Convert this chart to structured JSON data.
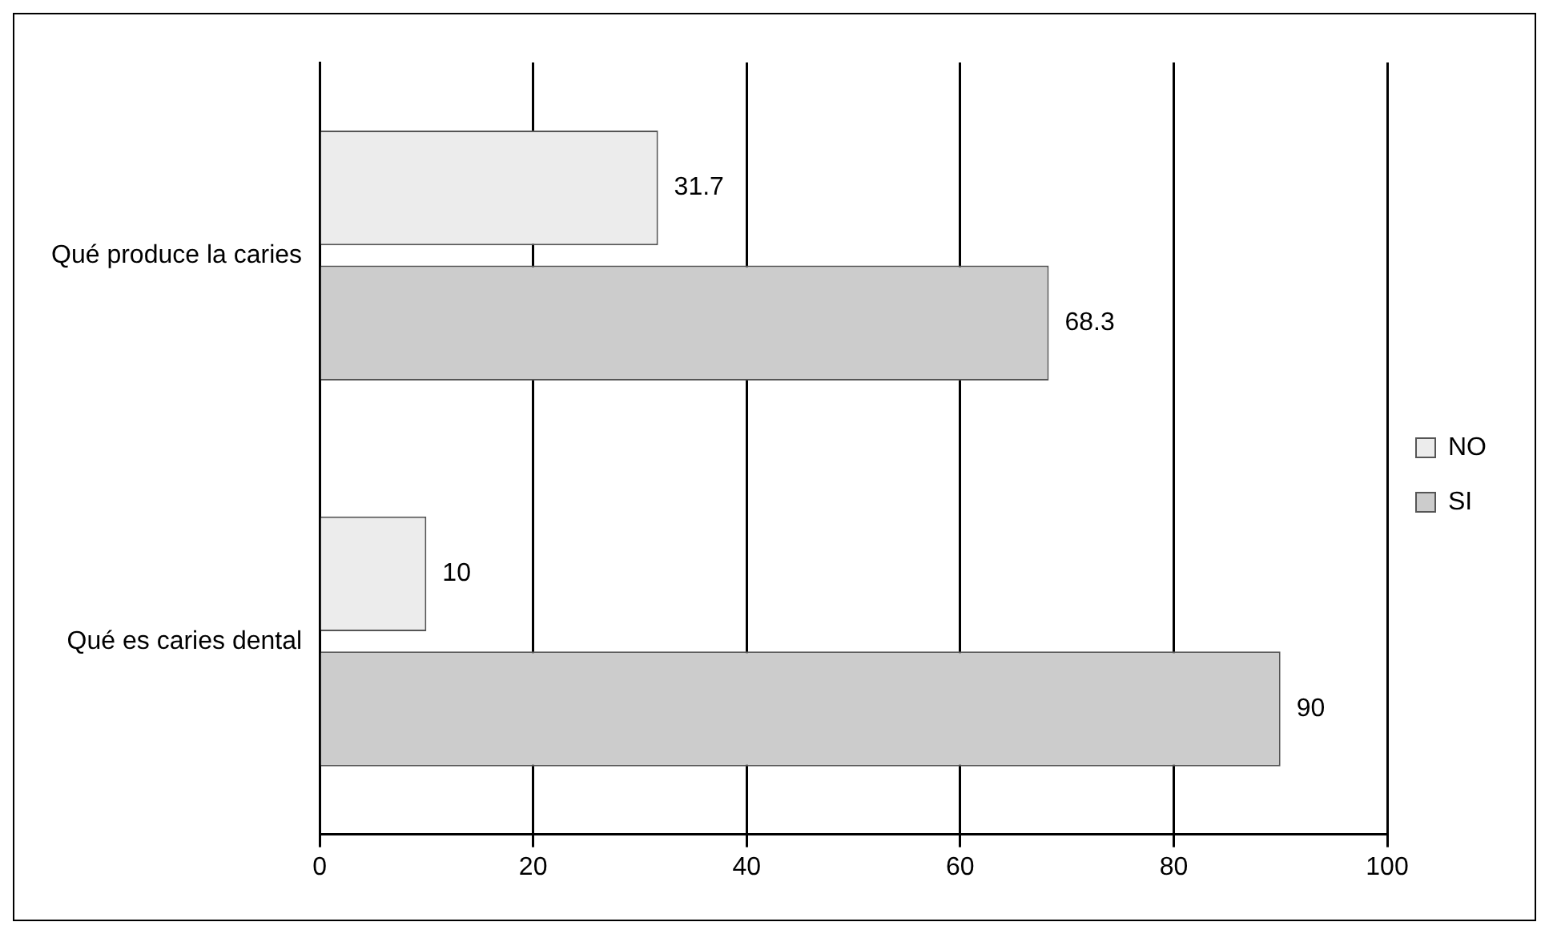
{
  "chart_data": {
    "type": "bar",
    "orientation": "horizontal",
    "categories": [
      "Qué produce la caries",
      "Qué es caries dental"
    ],
    "series": [
      {
        "name": "NO",
        "color": "#ececec",
        "values": [
          31.7,
          10
        ]
      },
      {
        "name": "SI",
        "color": "#cccccc",
        "values": [
          68.3,
          90
        ]
      }
    ],
    "xlim": [
      0,
      100
    ],
    "xticks": [
      0,
      20,
      40,
      60,
      80,
      100
    ],
    "grid": "x",
    "legend": "right",
    "data_labels": true
  }
}
